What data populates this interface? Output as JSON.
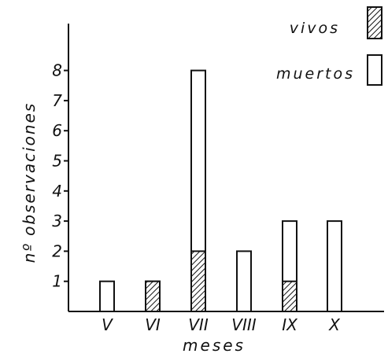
{
  "chart_data": {
    "type": "bar",
    "stacked": true,
    "title": "",
    "xlabel": "meses",
    "ylabel": "nº observaciones",
    "categories": [
      "V",
      "VI",
      "VII",
      "VIII",
      "IX",
      "X"
    ],
    "series": [
      {
        "name": "vivos",
        "values": [
          0,
          1,
          2,
          0,
          1,
          0
        ],
        "pattern": "hatched"
      },
      {
        "name": "muertos",
        "values": [
          1,
          0,
          6,
          2,
          2,
          3
        ],
        "pattern": "open"
      }
    ],
    "yticks": [
      1,
      2,
      3,
      4,
      5,
      6,
      7,
      8
    ],
    "ylim": [
      0,
      9
    ],
    "grid": false,
    "legend_position": "top-right"
  }
}
